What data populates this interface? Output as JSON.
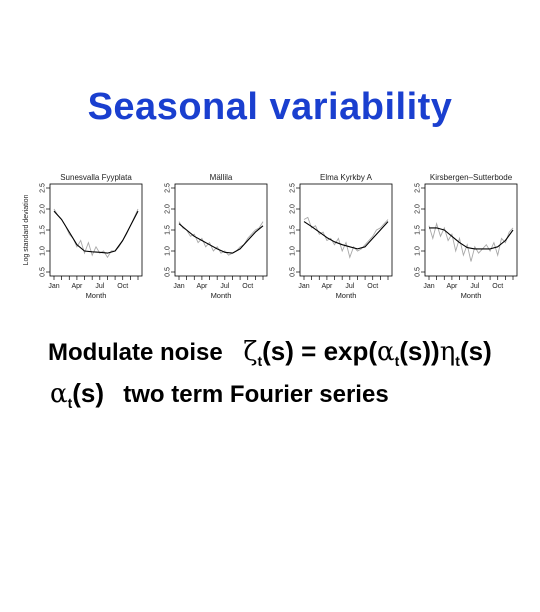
{
  "slide": {
    "title": "Seasonal variability",
    "line1_text": "Modulate noise",
    "line2_text": "two term Fourier series",
    "equation": {
      "lhs_symbol": "ζ",
      "lhs_sub": "t",
      "lhs_arg": "(s)",
      "equals": "=",
      "exp_open": "exp(",
      "alpha": "α",
      "alpha_sub": "t",
      "alpha_arg": "(s))",
      "eta": "η",
      "eta_sub": "t",
      "eta_arg": "(s)"
    },
    "alpha_term": {
      "symbol": "α",
      "sub": "t",
      "arg": "(s)"
    }
  },
  "colors": {
    "title": "#1a3fcf",
    "raw_series": "#a8a8a8",
    "fitted": "#000000"
  },
  "chart_data": [
    {
      "type": "line",
      "title": "Sunesvalla Fyyplata",
      "ylabel": "Log standard deviation",
      "xlabel": "Month",
      "ylim": [
        0.5,
        2.5
      ],
      "yticks": [
        "0.5",
        "1.0",
        "1.5",
        "2.0",
        "2.5"
      ],
      "xlim": [
        1,
        12
      ],
      "xticks": [
        1,
        4,
        7,
        10
      ],
      "xtick_labels": [
        "Jan",
        "Apr",
        "Jul",
        "Oct"
      ],
      "fitted": {
        "month": [
          1,
          2,
          3,
          4,
          5,
          6,
          7,
          8,
          9,
          10,
          11,
          12
        ],
        "value": [
          1.95,
          1.75,
          1.45,
          1.15,
          1.0,
          0.98,
          0.97,
          0.95,
          1.0,
          1.25,
          1.6,
          1.95
        ]
      },
      "raw": {
        "month": [
          1,
          1.5,
          2,
          2.5,
          3,
          3.5,
          4,
          4.5,
          5,
          5.5,
          6,
          6.5,
          7,
          7.5,
          8,
          8.5,
          9,
          9.5,
          10,
          10.5,
          11,
          11.5,
          12
        ],
        "value": [
          2.0,
          1.85,
          1.75,
          1.6,
          1.4,
          1.3,
          1.1,
          1.25,
          0.95,
          1.2,
          0.9,
          1.1,
          0.95,
          1.0,
          0.85,
          1.0,
          1.0,
          1.1,
          1.25,
          1.4,
          1.6,
          1.8,
          2.0
        ]
      }
    },
    {
      "type": "line",
      "title": "Mällila",
      "ylabel": "",
      "xlabel": "Month",
      "ylim": [
        0.5,
        2.5
      ],
      "yticks": [
        "0.5",
        "1.0",
        "1.5",
        "2.0",
        "2.5"
      ],
      "xlim": [
        1,
        12
      ],
      "xticks": [
        1,
        4,
        7,
        10
      ],
      "xtick_labels": [
        "Jan",
        "Apr",
        "Jul",
        "Oct"
      ],
      "fitted": {
        "month": [
          1,
          2,
          3,
          4,
          5,
          6,
          7,
          8,
          9,
          10,
          11,
          12
        ],
        "value": [
          1.65,
          1.5,
          1.35,
          1.25,
          1.15,
          1.05,
          0.97,
          0.95,
          1.05,
          1.25,
          1.45,
          1.6
        ]
      },
      "raw": {
        "month": [
          1,
          1.5,
          2,
          2.5,
          3,
          3.5,
          4,
          4.5,
          5,
          5.5,
          6,
          6.5,
          7,
          7.5,
          8,
          8.5,
          9,
          9.5,
          10,
          10.5,
          11,
          11.5,
          12
        ],
        "value": [
          1.7,
          1.55,
          1.5,
          1.35,
          1.4,
          1.2,
          1.3,
          1.1,
          1.2,
          1.0,
          1.1,
          0.95,
          1.0,
          0.9,
          0.95,
          1.0,
          1.1,
          1.15,
          1.3,
          1.4,
          1.5,
          1.55,
          1.7
        ]
      }
    },
    {
      "type": "line",
      "title": "Elma Kyrkby A",
      "ylabel": "",
      "xlabel": "Month",
      "ylim": [
        0.5,
        2.5
      ],
      "yticks": [
        "0.5",
        "1.0",
        "1.5",
        "2.0",
        "2.5"
      ],
      "xlim": [
        1,
        12
      ],
      "xticks": [
        1,
        4,
        7,
        10
      ],
      "xtick_labels": [
        "Jan",
        "Apr",
        "Jul",
        "Oct"
      ],
      "fitted": {
        "month": [
          1,
          2,
          3,
          4,
          5,
          6,
          7,
          8,
          9,
          10,
          11,
          12
        ],
        "value": [
          1.7,
          1.58,
          1.45,
          1.32,
          1.22,
          1.15,
          1.1,
          1.05,
          1.1,
          1.3,
          1.5,
          1.7
        ]
      },
      "raw": {
        "month": [
          1,
          1.5,
          2,
          2.5,
          3,
          3.5,
          4,
          4.5,
          5,
          5.5,
          6,
          6.5,
          7,
          7.5,
          8,
          8.5,
          9,
          9.5,
          10,
          10.5,
          11,
          11.5,
          12
        ],
        "value": [
          1.75,
          1.8,
          1.55,
          1.6,
          1.4,
          1.45,
          1.25,
          1.3,
          1.15,
          1.3,
          1.0,
          1.2,
          0.85,
          1.1,
          1.0,
          1.05,
          1.15,
          1.25,
          1.35,
          1.5,
          1.55,
          1.65,
          1.75
        ]
      }
    },
    {
      "type": "line",
      "title": "Kirsbergen–Sutterbode",
      "ylabel": "",
      "xlabel": "Month",
      "ylim": [
        0.5,
        2.5
      ],
      "yticks": [
        "0.5",
        "1.0",
        "1.5",
        "2.0",
        "2.5"
      ],
      "xlim": [
        1,
        12
      ],
      "xticks": [
        1,
        4,
        7,
        10
      ],
      "xtick_labels": [
        "Jan",
        "Apr",
        "Jul",
        "Oct"
      ],
      "fitted": {
        "month": [
          1,
          2,
          3,
          4,
          5,
          6,
          7,
          8,
          9,
          10,
          11,
          12
        ],
        "value": [
          1.55,
          1.55,
          1.5,
          1.35,
          1.2,
          1.08,
          1.05,
          1.05,
          1.05,
          1.1,
          1.25,
          1.5
        ]
      },
      "raw": {
        "month": [
          1,
          1.5,
          2,
          2.5,
          3,
          3.5,
          4,
          4.5,
          5,
          5.5,
          6,
          6.5,
          7,
          7.5,
          8,
          8.5,
          9,
          9.5,
          10,
          10.5,
          11,
          11.5,
          12
        ],
        "value": [
          1.6,
          1.3,
          1.65,
          1.35,
          1.55,
          1.25,
          1.4,
          1.0,
          1.3,
          0.9,
          1.15,
          0.75,
          1.1,
          0.95,
          1.05,
          1.15,
          1.0,
          1.2,
          0.9,
          1.3,
          1.2,
          1.45,
          1.55
        ]
      }
    }
  ]
}
